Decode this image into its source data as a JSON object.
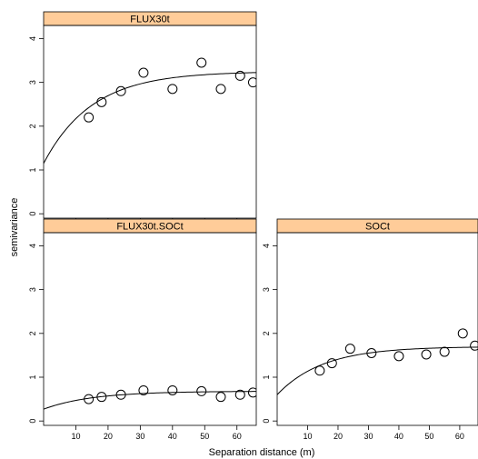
{
  "figure": {
    "ylabel": "semivariance",
    "xlabel": "Separation distance (m)"
  },
  "chart_data": [
    {
      "type": "scatter",
      "title": "FLUX30t",
      "xlim": [
        0,
        66
      ],
      "ylim": [
        -0.1,
        4.3
      ],
      "y_ticks": [
        0,
        1,
        2,
        3,
        4
      ],
      "x_ticks": [
        10,
        20,
        30,
        40,
        50,
        60
      ],
      "x_tick_labels_shown": false,
      "strip_color": "#FFCC99",
      "series": [
        {
          "x": [
            14,
            18,
            24,
            31,
            40,
            49,
            55,
            61,
            65
          ],
          "y": [
            2.2,
            2.55,
            2.8,
            3.22,
            2.85,
            3.45,
            2.85,
            3.15,
            3.0
          ]
        }
      ],
      "fitted_curve": {
        "nugget": 1.15,
        "sill": 3.25,
        "range": 15
      }
    },
    {
      "type": "scatter",
      "title": "FLUX30t.SOCt",
      "xlim": [
        0,
        66
      ],
      "ylim": [
        -0.1,
        4.3
      ],
      "y_ticks": [
        0,
        1,
        2,
        3,
        4
      ],
      "x_ticks": [
        10,
        20,
        30,
        40,
        50,
        60
      ],
      "x_tick_labels_shown": true,
      "strip_color": "#FFCC99",
      "series": [
        {
          "x": [
            14,
            18,
            24,
            31,
            40,
            49,
            55,
            61,
            65
          ],
          "y": [
            0.5,
            0.55,
            0.6,
            0.7,
            0.7,
            0.68,
            0.55,
            0.6,
            0.65
          ]
        }
      ],
      "fitted_curve": {
        "nugget": 0.27,
        "sill": 0.68,
        "range": 15
      }
    },
    {
      "type": "scatter",
      "title": "SOCt",
      "xlim": [
        0,
        66
      ],
      "ylim": [
        -0.1,
        4.3
      ],
      "y_ticks": [
        0,
        1,
        2,
        3,
        4
      ],
      "x_ticks": [
        10,
        20,
        30,
        40,
        50,
        60
      ],
      "x_tick_labels_shown": true,
      "strip_color": "#FFCC99",
      "series": [
        {
          "x": [
            14,
            18,
            24,
            31,
            40,
            49,
            55,
            61,
            65
          ],
          "y": [
            1.15,
            1.32,
            1.65,
            1.55,
            1.48,
            1.52,
            1.58,
            2.0,
            1.72
          ]
        }
      ],
      "fitted_curve": {
        "nugget": 0.6,
        "sill": 1.7,
        "range": 15
      }
    }
  ]
}
